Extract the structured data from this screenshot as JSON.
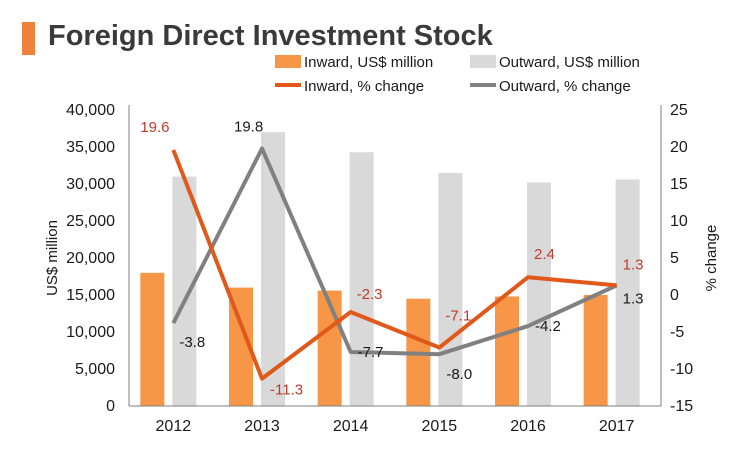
{
  "title": "Foreign Direct Investment Stock",
  "colors": {
    "inward_bar": "#f79646",
    "outward_bar": "#d9d9d9",
    "inward_line": "#e0591a",
    "outward_line": "#808080",
    "inward_label": "#c0392b",
    "axis": "#7f7f7f",
    "text": "#1a1a1a"
  },
  "chart_data": {
    "type": "bar+line",
    "title": "Foreign Direct Investment Stock",
    "categories": [
      "2012",
      "2013",
      "2014",
      "2015",
      "2016",
      "2017"
    ],
    "ylabel": "US$ million",
    "y2label": "% change",
    "ylim": [
      0,
      40000
    ],
    "y2lim": [
      -15,
      25
    ],
    "yticks": [
      "0",
      "5,000",
      "10,000",
      "15,000",
      "20,000",
      "25,000",
      "30,000",
      "35,000",
      "40,000"
    ],
    "y2ticks": [
      "-15",
      "-10",
      "-5",
      "0",
      "5",
      "10",
      "15",
      "20",
      "25"
    ],
    "series": [
      {
        "name": "Inward, US$ million",
        "kind": "bar",
        "axis": "left",
        "values": [
          18000,
          16000,
          15600,
          14500,
          14800,
          15000
        ]
      },
      {
        "name": "Outward, US$ million",
        "kind": "bar",
        "axis": "left",
        "values": [
          31000,
          37000,
          34300,
          31500,
          30200,
          30600
        ]
      },
      {
        "name": "Inward, % change",
        "kind": "line",
        "axis": "right",
        "values": [
          19.6,
          -11.3,
          -2.3,
          -7.1,
          2.4,
          1.3
        ],
        "labels": [
          "19.6",
          "-11.3",
          "-2.3",
          "-7.1",
          "2.4",
          "1.3"
        ]
      },
      {
        "name": "Outward, % change",
        "kind": "line",
        "axis": "right",
        "values": [
          -3.8,
          19.8,
          -7.7,
          -8.0,
          -4.2,
          1.3
        ],
        "labels": [
          "-3.8",
          "19.8",
          "-7.7",
          "-8.0",
          "-4.2",
          "1.3"
        ]
      }
    ]
  }
}
